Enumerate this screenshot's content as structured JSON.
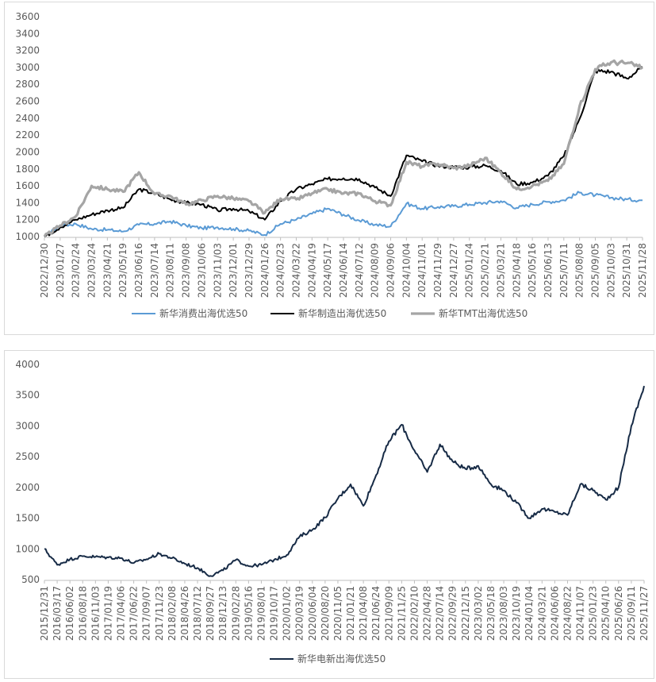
{
  "chart_data": [
    {
      "type": "line",
      "title": "",
      "xlabel": "",
      "ylabel": "",
      "ylim": [
        1000,
        3600
      ],
      "yticks": [
        1000,
        1200,
        1400,
        1600,
        1800,
        2000,
        2200,
        2400,
        2600,
        2800,
        3000,
        3200,
        3400,
        3600
      ],
      "categories": [
        "2022/12/30",
        "2023/01/27",
        "2023/02/24",
        "2023/03/24",
        "2023/04/21",
        "2023/05/19",
        "2023/06/16",
        "2023/07/14",
        "2023/08/11",
        "2023/09/08",
        "2023/10/06",
        "2023/11/03",
        "2023/12/01",
        "2023/12/29",
        "2024/01/26",
        "2024/02/23",
        "2024/03/22",
        "2024/04/19",
        "2024/05/17",
        "2024/06/14",
        "2024/07/12",
        "2024/08/09",
        "2024/09/06",
        "2024/10/04",
        "2024/11/01",
        "2024/11/29",
        "2024/12/27",
        "2025/01/24",
        "2025/02/21",
        "2025/03/21",
        "2025/04/18",
        "2025/05/16",
        "2025/06/13",
        "2025/07/11",
        "2025/08/08",
        "2025/09/05",
        "2025/10/03",
        "2025/10/31",
        "2025/11/28"
      ],
      "grid": false,
      "legend_position": "bottom",
      "series": [
        {
          "name": "新华消费出海优选50",
          "color": "#5b9bd5",
          "values": [
            1000,
            1130,
            1150,
            1090,
            1080,
            1060,
            1140,
            1150,
            1180,
            1130,
            1100,
            1110,
            1090,
            1070,
            1020,
            1150,
            1200,
            1270,
            1330,
            1260,
            1190,
            1140,
            1120,
            1390,
            1330,
            1350,
            1360,
            1380,
            1400,
            1420,
            1340,
            1380,
            1410,
            1430,
            1520,
            1490,
            1460,
            1440,
            1430
          ]
        },
        {
          "name": "新华制造出海优选50",
          "color": "#000000",
          "values": [
            1000,
            1110,
            1200,
            1260,
            1310,
            1340,
            1560,
            1510,
            1440,
            1400,
            1380,
            1310,
            1330,
            1300,
            1200,
            1420,
            1560,
            1620,
            1680,
            1690,
            1680,
            1580,
            1480,
            1960,
            1890,
            1840,
            1820,
            1820,
            1840,
            1780,
            1620,
            1640,
            1720,
            1950,
            2390,
            2960,
            2950,
            2870,
            3000
          ]
        },
        {
          "name": "新华TMT出海优选50",
          "color": "#a5a5a5",
          "values": [
            1000,
            1130,
            1240,
            1600,
            1560,
            1530,
            1760,
            1500,
            1480,
            1380,
            1430,
            1480,
            1450,
            1420,
            1280,
            1450,
            1440,
            1510,
            1560,
            1510,
            1510,
            1420,
            1370,
            1880,
            1830,
            1860,
            1810,
            1840,
            1930,
            1760,
            1560,
            1600,
            1660,
            1860,
            2540,
            2980,
            3060,
            3050,
            3000
          ]
        }
      ]
    },
    {
      "type": "line",
      "title": "",
      "xlabel": "",
      "ylabel": "",
      "ylim": [
        500,
        4000
      ],
      "yticks": [
        500,
        1000,
        1500,
        2000,
        2500,
        3000,
        3500,
        4000
      ],
      "categories": [
        "2015/12/31",
        "2016/03/17",
        "2016/06/02",
        "2016/08/18",
        "2016/11/03",
        "2017/01/19",
        "2017/04/06",
        "2017/06/22",
        "2017/09/07",
        "2017/11/23",
        "2018/02/08",
        "2018/04/26",
        "2018/07/12",
        "2018/09/27",
        "2018/12/13",
        "2019/02/28",
        "2019/05/16",
        "2019/08/01",
        "2019/10/17",
        "2020/01/02",
        "2020/03/19",
        "2020/06/04",
        "2020/08/20",
        "2020/11/05",
        "2021/01/21",
        "2021/04/08",
        "2021/06/24",
        "2021/09/09",
        "2021/11/25",
        "2022/02/10",
        "2022/04/28",
        "2022/07/14",
        "2022/09/29",
        "2022/12/15",
        "2023/03/02",
        "2023/05/18",
        "2023/08/03",
        "2023/10/19",
        "2024/01/04",
        "2024/03/21",
        "2024/06/06",
        "2024/08/22",
        "2024/11/07",
        "2025/01/23",
        "2025/04/10",
        "2025/06/26",
        "2025/09/11",
        "2025/11/27"
      ],
      "grid": false,
      "legend_position": "bottom",
      "series": [
        {
          "name": "新华电新出海优选50",
          "color": "#172b46",
          "values": [
            1000,
            740,
            830,
            880,
            870,
            860,
            850,
            770,
            830,
            920,
            850,
            760,
            690,
            560,
            650,
            820,
            720,
            740,
            820,
            900,
            1200,
            1310,
            1510,
            1820,
            2050,
            1700,
            2200,
            2750,
            3020,
            2600,
            2250,
            2700,
            2420,
            2300,
            2350,
            2050,
            1950,
            1750,
            1500,
            1650,
            1600,
            1550,
            2050,
            1950,
            1800,
            2000,
            3000,
            3650
          ]
        }
      ]
    }
  ]
}
